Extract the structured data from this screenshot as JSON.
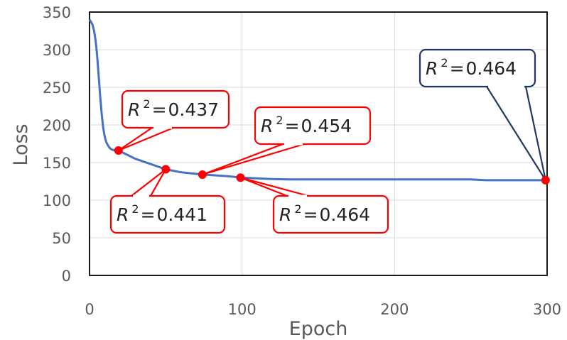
{
  "chart_data": {
    "type": "line",
    "title": "",
    "xlabel": "Epoch",
    "ylabel": "Loss",
    "xlim": [
      0,
      300
    ],
    "ylim": [
      0,
      350
    ],
    "xticks": [
      0,
      100,
      200,
      300
    ],
    "yticks": [
      0,
      50,
      100,
      150,
      200,
      250,
      300,
      350
    ],
    "grid": true,
    "legend": "none",
    "series": [
      {
        "color": "#4472C4",
        "x": [
          0,
          1,
          2,
          3,
          4,
          5,
          6,
          7,
          8,
          9,
          10,
          11,
          12,
          13,
          14,
          15,
          17,
          20,
          25,
          30,
          40,
          50,
          60,
          75,
          90,
          100,
          120,
          130,
          150,
          200,
          250,
          260,
          280,
          300
        ],
        "y": [
          340,
          337,
          333,
          325,
          312,
          292,
          265,
          238,
          214,
          196,
          184,
          177,
          173,
          170,
          168,
          167,
          166,
          165,
          160,
          155,
          148,
          141,
          137,
          134,
          132,
          130,
          128,
          127.5,
          127.5,
          127.5,
          127.5,
          126.5,
          126.5,
          126.5
        ]
      }
    ],
    "highlight_points": [
      {
        "x": 19,
        "y": 166,
        "color": "#FF0000"
      },
      {
        "x": 50,
        "y": 141,
        "color": "#FF0000"
      },
      {
        "x": 74,
        "y": 134,
        "color": "#FF0000"
      },
      {
        "x": 99,
        "y": 130,
        "color": "#FF0000"
      },
      {
        "x": 299,
        "y": 126.5,
        "color": "#FF0000"
      }
    ],
    "annotations": [
      {
        "var": "R",
        "exp": "2",
        "eq": "=",
        "value": "0.437",
        "border": "#FF0000"
      },
      {
        "var": "R",
        "exp": "2",
        "eq": "=",
        "value": "0.441",
        "border": "#FF0000"
      },
      {
        "var": "R",
        "exp": "2",
        "eq": "=",
        "value": "0.454",
        "border": "#FF0000"
      },
      {
        "var": "R",
        "exp": "2",
        "eq": "=",
        "value": "0.464",
        "border": "#FF0000"
      },
      {
        "var": "R",
        "exp": "2",
        "eq": "=",
        "value": "0.464",
        "border": "#1F3864"
      }
    ]
  }
}
